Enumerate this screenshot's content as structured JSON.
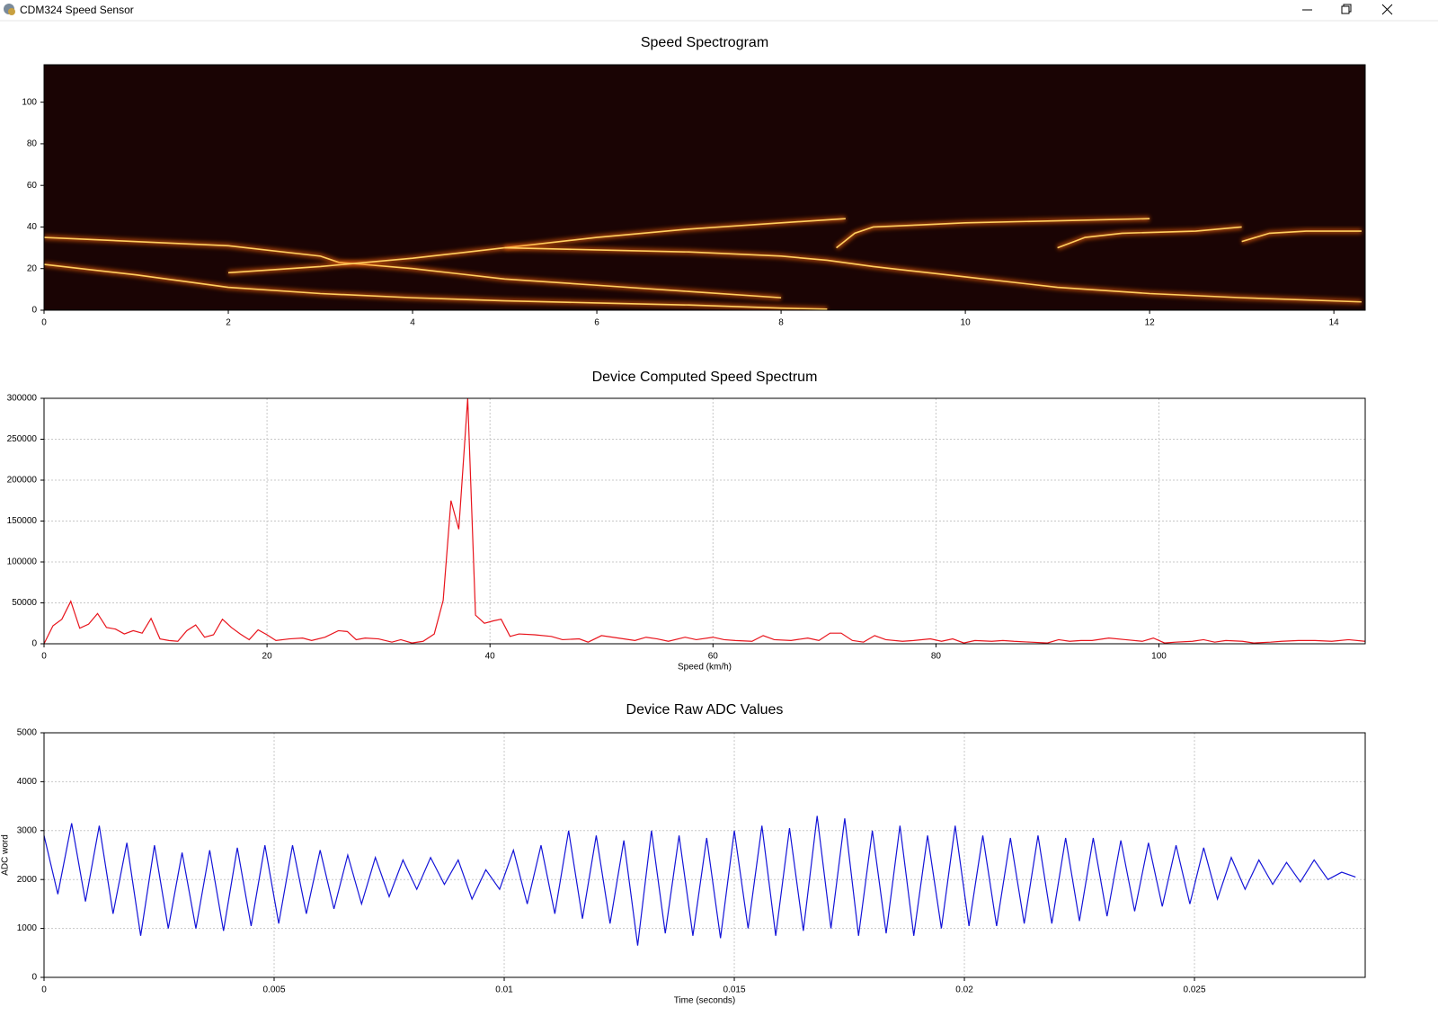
{
  "window": {
    "title": "CDM324 Speed Sensor"
  },
  "chart_data": [
    {
      "type": "spectrogram",
      "title": "Speed Spectrogram",
      "background": "#1a0404",
      "ridge_color": "#ff6a10",
      "xlim": [
        0,
        14.34
      ],
      "ylim": [
        0,
        118
      ],
      "xticks": [
        0,
        2,
        4,
        6,
        8,
        10,
        12,
        14
      ],
      "yticks": [
        0,
        20,
        40,
        60,
        80,
        100
      ],
      "grid": false,
      "series": [
        {
          "x": [
            0,
            1,
            2,
            3,
            4,
            5,
            6,
            7,
            8,
            8.5
          ],
          "values": [
            22,
            17,
            11,
            8,
            6,
            4.5,
            3.5,
            2.5,
            1,
            0.5
          ]
        },
        {
          "x": [
            0,
            1,
            2,
            3,
            3.2,
            4,
            5,
            6,
            7,
            8
          ],
          "values": [
            35,
            33,
            31,
            26,
            23,
            20,
            15,
            12,
            9,
            6
          ]
        },
        {
          "x": [
            2,
            3,
            4,
            5,
            6,
            7,
            8,
            8.7
          ],
          "values": [
            18,
            21,
            25,
            30,
            35,
            39,
            42,
            44
          ]
        },
        {
          "x": [
            5,
            6,
            7,
            8,
            8.5,
            9,
            10,
            11,
            12,
            13,
            14.3
          ],
          "values": [
            30,
            29,
            28,
            26,
            24,
            21,
            16,
            11,
            8,
            6,
            4
          ]
        },
        {
          "x": [
            8.6,
            8.8,
            9,
            9.5,
            10,
            11,
            12
          ],
          "values": [
            30,
            37,
            40,
            41,
            42,
            43,
            44
          ]
        },
        {
          "x": [
            11,
            11.3,
            11.7,
            12.5,
            13
          ],
          "values": [
            30,
            35,
            37,
            38,
            40
          ]
        },
        {
          "x": [
            13,
            13.3,
            13.7,
            14.3
          ],
          "values": [
            33,
            37,
            38,
            38
          ]
        }
      ]
    },
    {
      "type": "line",
      "title": "Device Computed Speed Spectrum",
      "x_label": "Speed (km/h)",
      "color": "#e8141c",
      "xlim": [
        0,
        118.5
      ],
      "ylim": [
        0,
        300000
      ],
      "xticks": [
        0,
        20,
        40,
        60,
        80,
        100
      ],
      "yticks": [
        0,
        50000,
        100000,
        150000,
        200000,
        250000,
        300000
      ],
      "grid": true,
      "x": [
        0,
        0.8,
        1.6,
        2.4,
        3.2,
        4,
        4.8,
        5.6,
        6.4,
        7.2,
        8,
        8.8,
        9.6,
        10.4,
        11.2,
        12,
        12.8,
        13.6,
        14.4,
        15.2,
        16,
        16.8,
        17.6,
        18.4,
        19.2,
        20,
        20.8,
        22,
        23.2,
        24,
        25.2,
        26.4,
        27.2,
        28,
        28.8,
        30,
        31.2,
        32,
        33,
        34,
        35,
        35.8,
        36.5,
        37.2,
        38,
        38.7,
        39.5,
        40.3,
        41,
        41.8,
        42.6,
        44,
        45.5,
        46.5,
        48,
        48.8,
        50,
        51.5,
        53,
        54,
        55,
        56,
        57.5,
        58.5,
        60,
        61,
        62,
        63.5,
        64.5,
        65.5,
        67,
        68.5,
        69.5,
        70.5,
        71.5,
        72.5,
        73.5,
        74.5,
        75.5,
        77,
        78,
        79.5,
        80.5,
        81.5,
        82.5,
        83.5,
        85,
        86,
        87,
        88.5,
        90,
        91,
        92,
        93,
        94,
        95.5,
        97,
        98.5,
        99.5,
        100.5,
        101.5,
        103,
        104,
        105,
        106,
        107.5,
        108.5,
        110,
        111,
        112.5,
        114,
        115.5,
        117,
        118.5
      ],
      "values": [
        0,
        22000,
        30000,
        52000,
        19000,
        24000,
        37000,
        20000,
        18000,
        12000,
        16000,
        13000,
        31000,
        6000,
        4000,
        3000,
        16000,
        23000,
        8000,
        11000,
        30000,
        20000,
        12000,
        5000,
        17000,
        11000,
        4000,
        6000,
        7000,
        4000,
        8000,
        16000,
        15000,
        5000,
        7000,
        6000,
        2000,
        5000,
        1000,
        3000,
        12000,
        53000,
        175000,
        140000,
        300000,
        35000,
        25000,
        28000,
        30000,
        9000,
        12000,
        11000,
        9000,
        5000,
        6000,
        2000,
        10000,
        7000,
        4000,
        8000,
        6000,
        3000,
        8000,
        5000,
        8000,
        5000,
        4000,
        3000,
        10000,
        5000,
        4000,
        7000,
        4000,
        13000,
        13000,
        4000,
        2000,
        10000,
        5000,
        3000,
        4000,
        6000,
        3000,
        6000,
        1000,
        4000,
        3000,
        4000,
        3000,
        2000,
        1000,
        5000,
        3000,
        4000,
        4000,
        7000,
        5000,
        3000,
        7000,
        1000,
        2000,
        3000,
        5000,
        2000,
        4000,
        3000,
        1000,
        2000,
        3000,
        4000,
        4000,
        3000,
        5000,
        3000
      ]
    },
    {
      "type": "line",
      "title": "Device Raw ADC Values",
      "x_label": "Time (seconds)",
      "y_label": "ADC word",
      "color": "#1414d8",
      "xlim": [
        0,
        0.02871
      ],
      "ylim": [
        0,
        5000
      ],
      "xticks": [
        0,
        0.005,
        0.01,
        0.015,
        0.02,
        0.025
      ],
      "yticks": [
        0,
        1000,
        2000,
        3000,
        4000,
        5000
      ],
      "grid": true,
      "x": [
        0,
        0.0003,
        0.0006,
        0.0009,
        0.0012,
        0.0015,
        0.0018,
        0.0021,
        0.0024,
        0.0027,
        0.003,
        0.0033,
        0.0036,
        0.0039,
        0.0042,
        0.0045,
        0.0048,
        0.0051,
        0.0054,
        0.0057,
        0.006,
        0.0063,
        0.0066,
        0.0069,
        0.0072,
        0.0075,
        0.0078,
        0.0081,
        0.0084,
        0.0087,
        0.009,
        0.0093,
        0.0096,
        0.0099,
        0.0102,
        0.0105,
        0.0108,
        0.0111,
        0.0114,
        0.0117,
        0.012,
        0.0123,
        0.0126,
        0.0129,
        0.0132,
        0.0135,
        0.0138,
        0.0141,
        0.0144,
        0.0147,
        0.015,
        0.0153,
        0.0156,
        0.0159,
        0.0162,
        0.0165,
        0.0168,
        0.0171,
        0.0174,
        0.0177,
        0.018,
        0.0183,
        0.0186,
        0.0189,
        0.0192,
        0.0195,
        0.0198,
        0.0201,
        0.0204,
        0.0207,
        0.021,
        0.0213,
        0.0216,
        0.0219,
        0.0222,
        0.0225,
        0.0228,
        0.0231,
        0.0234,
        0.0237,
        0.024,
        0.0243,
        0.0246,
        0.0249,
        0.0252,
        0.0255,
        0.0258,
        0.0261,
        0.0264,
        0.0267,
        0.027,
        0.0273,
        0.0276,
        0.0279,
        0.0282,
        0.0285
      ],
      "values": [
        2900,
        1700,
        3150,
        1550,
        3100,
        1300,
        2750,
        850,
        2700,
        1000,
        2550,
        1000,
        2600,
        950,
        2650,
        1050,
        2700,
        1100,
        2700,
        1300,
        2600,
        1400,
        2500,
        1500,
        2450,
        1650,
        2400,
        1800,
        2450,
        1900,
        2400,
        1600,
        2200,
        1800,
        2600,
        1500,
        2700,
        1300,
        3000,
        1200,
        2900,
        1100,
        2800,
        650,
        3000,
        900,
        2900,
        850,
        2850,
        800,
        3000,
        1000,
        3100,
        850,
        3050,
        950,
        3300,
        1000,
        3250,
        850,
        3000,
        900,
        3100,
        850,
        2900,
        1000,
        3100,
        1050,
        2900,
        1050,
        2850,
        1100,
        2900,
        1100,
        2850,
        1150,
        2850,
        1250,
        2800,
        1350,
        2750,
        1450,
        2700,
        1500,
        2650,
        1600,
        2450,
        1800,
        2400,
        1900,
        2350,
        1950,
        2400,
        2000,
        2150,
        2050
      ]
    }
  ]
}
